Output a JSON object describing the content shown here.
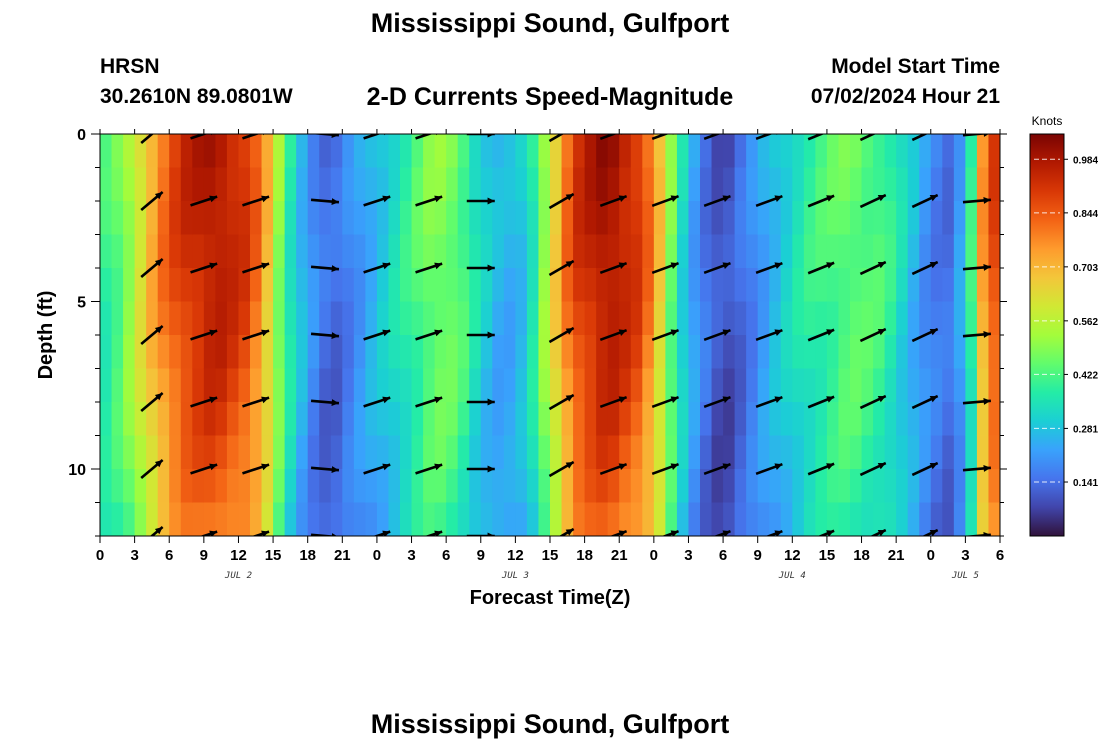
{
  "header": {
    "title": "Mississippi Sound, Gulfport",
    "station": "HRSN",
    "coordinates": "30.2610N  89.0801W",
    "subtitle": "2-D Currents Speed-Magnitude",
    "model_label": "Model Start Time",
    "model_value": "07/02/2024 Hour 21"
  },
  "footer": {
    "title": "Mississippi Sound, Gulfport"
  },
  "colors": {
    "palette": [
      "#30123b",
      "#4145ab",
      "#4675ed",
      "#39a2fc",
      "#1bcfd4",
      "#24eca6",
      "#61fc6c",
      "#a4fc3b",
      "#d1e834",
      "#f3c63a",
      "#fe9b2d",
      "#f36315",
      "#d93806",
      "#b11901",
      "#7a0403"
    ]
  },
  "chart_data": {
    "type": "heatmap",
    "xlabel": "Forecast Time(Z)",
    "ylabel": "Depth (ft)",
    "x_unit": "hours since 2024-07-02 00Z",
    "x_range": [
      0,
      78
    ],
    "x_ticks": [
      "0",
      "3",
      "6",
      "9",
      "12",
      "15",
      "18",
      "21",
      "0",
      "3",
      "6",
      "9",
      "12",
      "15",
      "18",
      "21",
      "0",
      "3",
      "6",
      "9",
      "12",
      "15",
      "18",
      "21",
      "0",
      "3",
      "6"
    ],
    "date_labels": [
      {
        "text": "JUL 2",
        "hour": 12
      },
      {
        "text": "JUL 3",
        "hour": 36
      },
      {
        "text": "JUL 4",
        "hour": 60
      },
      {
        "text": "JUL 5",
        "hour": 75
      }
    ],
    "y_ticks": [
      "0",
      "5",
      "10"
    ],
    "y_range": [
      0,
      12
    ],
    "y_reversed": true,
    "colorbar": {
      "title": "Knots",
      "ticks": [
        "0.984",
        "0.844",
        "0.703",
        "0.562",
        "0.422",
        "0.281",
        "0.141"
      ],
      "min": 0.0,
      "max": 1.05
    },
    "speed_profile": [
      {
        "hour": 0,
        "speed": 0.38
      },
      {
        "hour": 2,
        "speed": 0.48
      },
      {
        "hour": 3,
        "speed": 0.58
      },
      {
        "hour": 5,
        "speed": 0.78
      },
      {
        "hour": 7,
        "speed": 0.92
      },
      {
        "hour": 10,
        "speed": 1.0
      },
      {
        "hour": 13,
        "speed": 0.9
      },
      {
        "hour": 14.5,
        "speed": 0.7
      },
      {
        "hour": 16,
        "speed": 0.42
      },
      {
        "hour": 18,
        "speed": 0.22
      },
      {
        "hour": 20,
        "speed": 0.12
      },
      {
        "hour": 22,
        "speed": 0.2
      },
      {
        "hour": 25,
        "speed": 0.32
      },
      {
        "hour": 29,
        "speed": 0.5
      },
      {
        "hour": 31,
        "speed": 0.47
      },
      {
        "hour": 33,
        "speed": 0.32
      },
      {
        "hour": 35,
        "speed": 0.24
      },
      {
        "hour": 37,
        "speed": 0.3
      },
      {
        "hour": 39,
        "speed": 0.6
      },
      {
        "hour": 41,
        "speed": 0.9
      },
      {
        "hour": 44,
        "speed": 1.02
      },
      {
        "hour": 47,
        "speed": 0.9
      },
      {
        "hour": 48.5,
        "speed": 0.68
      },
      {
        "hour": 50,
        "speed": 0.38
      },
      {
        "hour": 52,
        "speed": 0.18
      },
      {
        "hour": 54,
        "speed": 0.08
      },
      {
        "hour": 56,
        "speed": 0.16
      },
      {
        "hour": 58,
        "speed": 0.26
      },
      {
        "hour": 61,
        "speed": 0.38
      },
      {
        "hour": 65,
        "speed": 0.47
      },
      {
        "hour": 68,
        "speed": 0.42
      },
      {
        "hour": 70,
        "speed": 0.3
      },
      {
        "hour": 72,
        "speed": 0.18
      },
      {
        "hour": 74,
        "speed": 0.14
      },
      {
        "hour": 75.5,
        "speed": 0.4
      },
      {
        "hour": 76.5,
        "speed": 0.75
      },
      {
        "hour": 78,
        "speed": 0.95
      }
    ],
    "vector_hours": [
      4.5,
      9,
      13.5,
      19.5,
      24,
      28.5,
      33,
      40,
      44.5,
      49,
      53.5,
      58,
      62.5,
      67,
      71.5,
      76
    ],
    "vector_depths": [
      0,
      2,
      4,
      6,
      8,
      10,
      12
    ],
    "vector_angles": [
      40,
      18,
      18,
      -5,
      18,
      18,
      0,
      30,
      20,
      20,
      20,
      20,
      22,
      25,
      25,
      5
    ]
  }
}
